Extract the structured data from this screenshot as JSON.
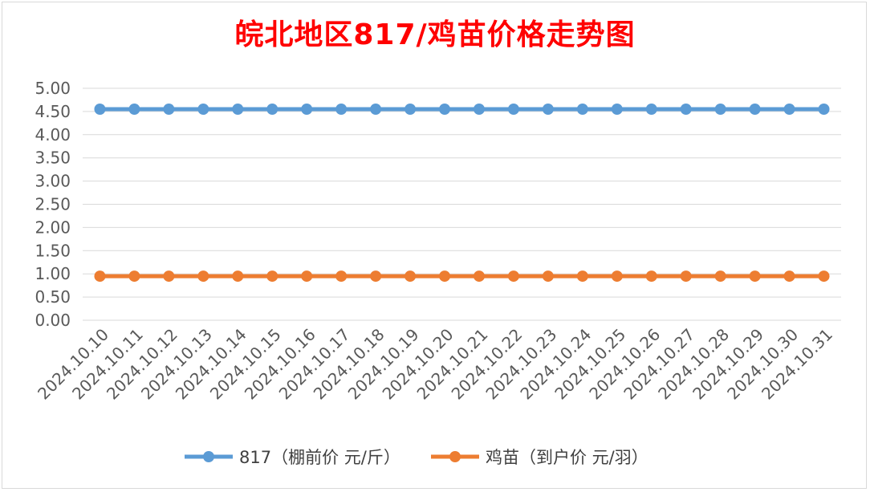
{
  "chart_data": {
    "type": "line",
    "title": "皖北地区817/鸡苗价格走势图",
    "categories": [
      "2024.10.10",
      "2024.10.11",
      "2024.10.12",
      "2024.10.13",
      "2024.10.14",
      "2024.10.15",
      "2024.10.16",
      "2024.10.17",
      "2024.10.18",
      "2024.10.19",
      "2024.10.20",
      "2024.10.21",
      "2024.10.22",
      "2024.10.23",
      "2024.10.24",
      "2024.10.25",
      "2024.10.26",
      "2024.10.27",
      "2024.10.28",
      "2024.10.29",
      "2024.10.30",
      "2024.10.31"
    ],
    "series": [
      {
        "name": "817（棚前价 元/斤）",
        "color": "#5b9bd5",
        "values": [
          4.55,
          4.55,
          4.55,
          4.55,
          4.55,
          4.55,
          4.55,
          4.55,
          4.55,
          4.55,
          4.55,
          4.55,
          4.55,
          4.55,
          4.55,
          4.55,
          4.55,
          4.55,
          4.55,
          4.55,
          4.55,
          4.55
        ]
      },
      {
        "name": "鸡苗（到户价 元/羽）",
        "color": "#ed7d31",
        "values": [
          0.95,
          0.95,
          0.95,
          0.95,
          0.95,
          0.95,
          0.95,
          0.95,
          0.95,
          0.95,
          0.95,
          0.95,
          0.95,
          0.95,
          0.95,
          0.95,
          0.95,
          0.95,
          0.95,
          0.95,
          0.95,
          0.95
        ]
      }
    ],
    "yticks": [
      "0.00",
      "0.50",
      "1.00",
      "1.50",
      "2.00",
      "2.50",
      "3.00",
      "3.50",
      "4.00",
      "4.50",
      "5.00"
    ],
    "ylim": [
      0,
      5
    ],
    "grid": true,
    "legend_position": "bottom",
    "title_color": "#ff0000"
  }
}
